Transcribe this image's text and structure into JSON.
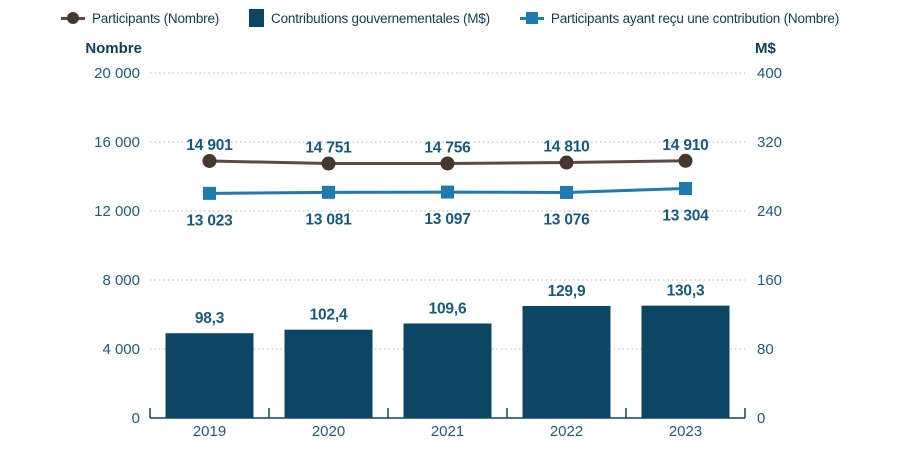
{
  "chart_data": {
    "type": "combo",
    "categories": [
      "2019",
      "2020",
      "2021",
      "2022",
      "2023"
    ],
    "series": [
      {
        "name": "Participants (Nombre)",
        "chart_type": "line",
        "axis": "left",
        "marker": "circle",
        "values": [
          14901,
          14751,
          14756,
          14810,
          14910
        ],
        "value_labels": [
          "14 901",
          "14 751",
          "14 756",
          "14 810",
          "14 910"
        ],
        "label_position": "above"
      },
      {
        "name": "Contributions gouvernementales (M$)",
        "chart_type": "bar",
        "axis": "right",
        "values": [
          98.3,
          102.4,
          109.6,
          129.9,
          130.3
        ],
        "value_labels": [
          "98,3",
          "102,4",
          "109,6",
          "129,9",
          "130,3"
        ],
        "label_position": "above"
      },
      {
        "name": "Participants ayant reçu une contribution (Nombre)",
        "chart_type": "line",
        "axis": "left",
        "marker": "square",
        "values": [
          13023,
          13081,
          13097,
          13076,
          13304
        ],
        "value_labels": [
          "13 023",
          "13 081",
          "13 097",
          "13 076",
          "13 304"
        ],
        "label_position": "below"
      }
    ],
    "left_axis": {
      "title": "Nombre",
      "min": 0,
      "max": 20000,
      "ticks": [
        {
          "value": 0,
          "label": "0"
        },
        {
          "value": 4000,
          "label": "4 000"
        },
        {
          "value": 8000,
          "label": "8 000"
        },
        {
          "value": 12000,
          "label": "12 000"
        },
        {
          "value": 16000,
          "label": "16 000"
        },
        {
          "value": 20000,
          "label": "20 000"
        }
      ]
    },
    "right_axis": {
      "title": "M$",
      "min": 0,
      "max": 400,
      "ticks": [
        {
          "value": 0,
          "label": "0"
        },
        {
          "value": 80,
          "label": "80"
        },
        {
          "value": 160,
          "label": "160"
        },
        {
          "value": 240,
          "label": "240"
        },
        {
          "value": 320,
          "label": "320"
        },
        {
          "value": 400,
          "label": "400"
        }
      ]
    },
    "grid": "horizontal-dotted",
    "legend_position": "top",
    "colors": {
      "bar": "#0d4665",
      "line1": "#5c4b41",
      "line1_marker": "#47362c",
      "line2": "#1f7ab0",
      "tick_text": "#1d5b80",
      "value_text": "#175a80",
      "axis_title_text": "#0f3d5c",
      "year_text": "#25597b",
      "gridline": "#c6c6c6",
      "axis_line": "#0d4665"
    }
  }
}
